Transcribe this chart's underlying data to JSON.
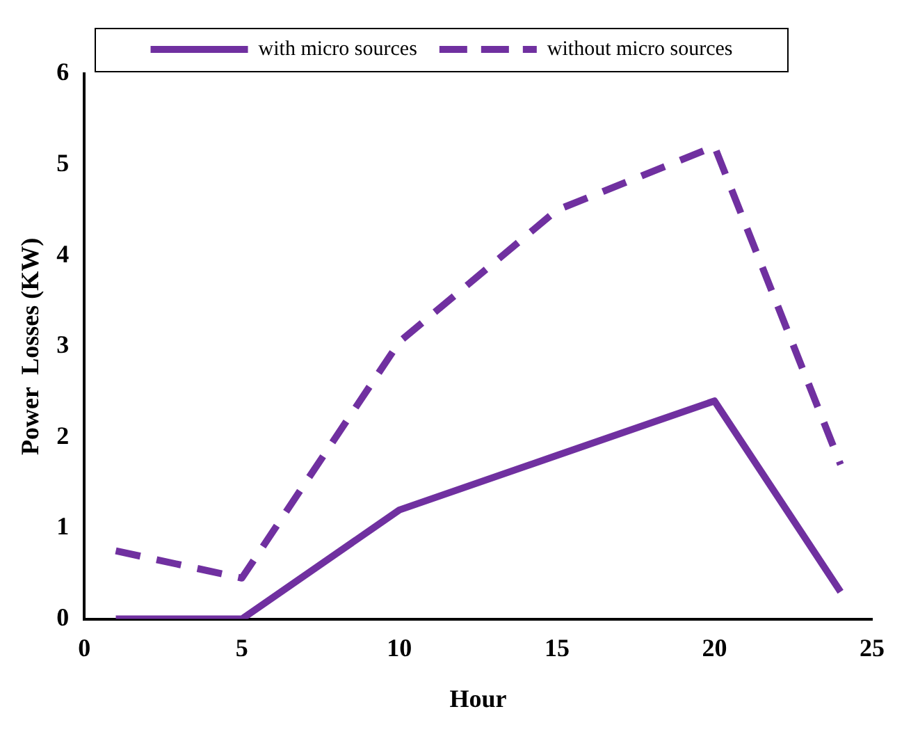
{
  "chart_data": {
    "type": "line",
    "xlabel": "Hour",
    "ylabel": "Power  Losses (KW)",
    "x": [
      1,
      5,
      10,
      15,
      20,
      24
    ],
    "series": [
      {
        "name": "with micro sources",
        "color": "#7030a0",
        "values": [
          0,
          0,
          1.2,
          1.8,
          2.4,
          0.3
        ],
        "line_style": "solid"
      },
      {
        "name": "without micro sources",
        "color": "#7030a0",
        "values": [
          0.75,
          0.45,
          3.05,
          4.5,
          5.2,
          1.7
        ],
        "line_style": "dashed"
      }
    ],
    "xlim": [
      0,
      25
    ],
    "xticks": [
      0,
      5,
      10,
      15,
      20,
      25
    ],
    "ylim": [
      0,
      6
    ],
    "yticks": [
      0,
      1,
      2,
      3,
      4,
      5,
      6
    ],
    "grid": false,
    "legend": "top",
    "marker": "none"
  }
}
